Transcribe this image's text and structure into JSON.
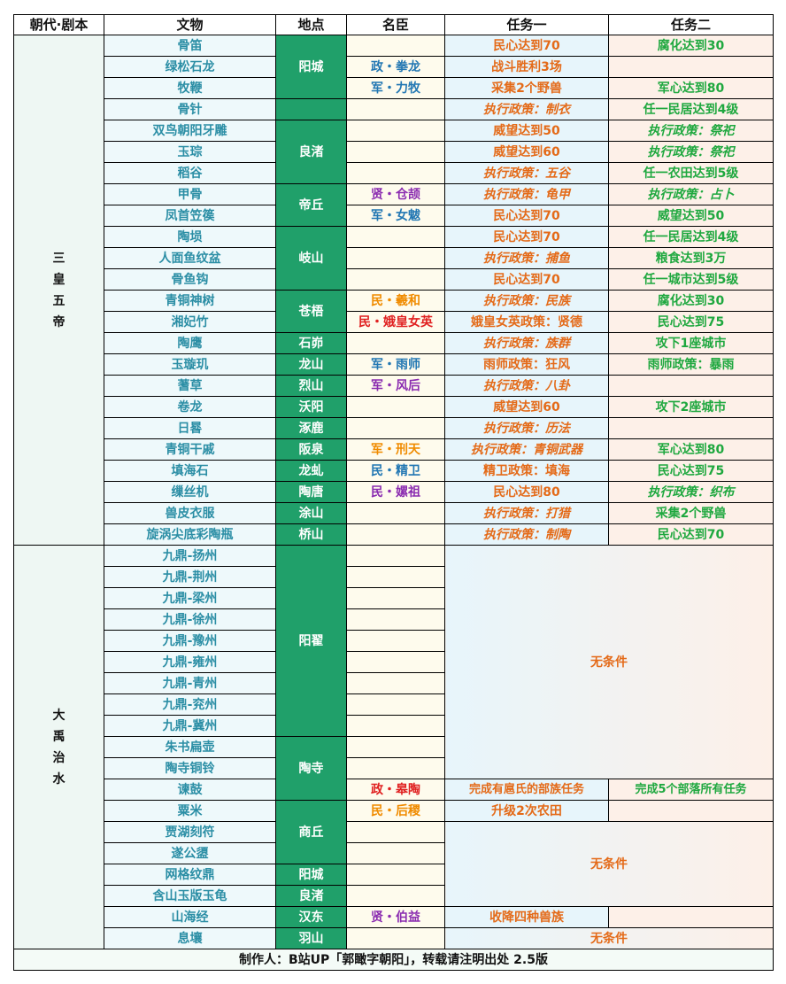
{
  "headers": [
    "朝代·剧本",
    "文物",
    "地点",
    "名臣",
    "任务一",
    "任务二"
  ],
  "era1": "三皇五帝",
  "era2": "大禹治水",
  "footer": "制作人：B站UP「郭瞰字朝阳」，转载请注明出处 2.5版",
  "no_condition": "无条件",
  "colors": {
    "location_bg": "#20a06a",
    "task1_text": "#e46a18",
    "task2_text": "#1fa83f",
    "artifact_text": "#2b8ea5"
  },
  "rows": [
    {
      "artifact": "骨笛",
      "task1": "民心达到70",
      "task2": "腐化达到30"
    },
    {
      "artifact": "绿松石龙",
      "minister": "政・拳龙",
      "task1": "战斗胜利3场",
      "task2": ""
    },
    {
      "artifact": "牧鞭",
      "minister": "军・力牧",
      "task1": "采集2个野兽",
      "task2": "军心达到80"
    },
    {
      "artifact": "骨针",
      "task1": "执行政策：制衣",
      "task2": "任一民居达到4级"
    },
    {
      "artifact": "双鸟朝阳牙雕",
      "task1": "威望达到50",
      "task2": "执行政策：祭祀"
    },
    {
      "artifact": "玉琮",
      "task1": "威望达到60",
      "task2": "执行政策：祭祀"
    },
    {
      "artifact": "稻谷",
      "task1": "执行政策：五谷",
      "task2": "任一农田达到5级"
    },
    {
      "artifact": "甲骨",
      "minister": "贤・仓颉",
      "task1": "执行政策：龟甲",
      "task2": "执行政策：占卜"
    },
    {
      "artifact": "凤首笠篌",
      "minister": "军・女魃",
      "task1": "民心达到70",
      "task2": "威望达到50"
    },
    {
      "artifact": "陶埙",
      "task1": "民心达到70",
      "task2": "任一民居达到4级"
    },
    {
      "artifact": "人面鱼纹盆",
      "task1": "执行政策：捕鱼",
      "task2": "粮食达到3万"
    },
    {
      "artifact": "骨鱼钩",
      "task1": "民心达到70",
      "task2": "任一城市达到5级"
    },
    {
      "artifact": "青铜神树",
      "minister": "民・羲和",
      "task1": "执行政策：民族",
      "task2": "腐化达到30"
    },
    {
      "artifact": "湘妃竹",
      "minister": "民・娥皇女英",
      "task1": "娥皇女英政策：贤德",
      "task2": "民心达到75"
    },
    {
      "artifact": "陶鹰",
      "location": "石峁",
      "task1": "执行政策：族群",
      "task2": "攻下1座城市"
    },
    {
      "artifact": "玉璇玑",
      "location": "龙山",
      "minister": "军・雨师",
      "task1": "雨师政策：狂风",
      "task2": "雨师政策：暴雨"
    },
    {
      "artifact": "蓍草",
      "location": "烈山",
      "minister": "军・风后",
      "task1": "执行政策：八卦",
      "task2": ""
    },
    {
      "artifact": "卷龙",
      "location": "沃阳",
      "task1": "威望达到60",
      "task2": "攻下2座城市"
    },
    {
      "artifact": "日晷",
      "location": "涿鹿",
      "task1": "执行政策：历法",
      "task2": ""
    },
    {
      "artifact": "青铜干戚",
      "location": "阪泉",
      "minister": "军・刑天",
      "task1": "执行政策：青铜武器",
      "task2": "军心达到80"
    },
    {
      "artifact": "填海石",
      "location": "龙虬",
      "minister": "民・精卫",
      "task1": "精卫政策：填海",
      "task2": "民心达到75"
    },
    {
      "artifact": "缫丝机",
      "location": "陶唐",
      "minister": "民・嫘祖",
      "task1": "民心达到80",
      "task2": "执行政策：织布"
    },
    {
      "artifact": "兽皮衣服",
      "location": "涂山",
      "task1": "执行政策：打猎",
      "task2": "采集2个野兽"
    },
    {
      "artifact": "旋涡尖底彩陶瓶",
      "location": "桥山",
      "task1": "执行政策：制陶",
      "task2": "民心达到70"
    },
    {
      "artifact": "九鼎-扬州"
    },
    {
      "artifact": "九鼎-荆州"
    },
    {
      "artifact": "九鼎-梁州"
    },
    {
      "artifact": "九鼎-徐州"
    },
    {
      "artifact": "九鼎-豫州"
    },
    {
      "artifact": "九鼎-雍州"
    },
    {
      "artifact": "九鼎-青州"
    },
    {
      "artifact": "九鼎-兖州"
    },
    {
      "artifact": "九鼎-冀州"
    },
    {
      "artifact": "朱书扁壶"
    },
    {
      "artifact": "陶寺铜铃"
    },
    {
      "artifact": "谏鼓",
      "minister": "政・皋陶",
      "task1": "完成有扈氏的部族任务",
      "task2": "完成5个部落所有任务"
    },
    {
      "artifact": "粟米",
      "minister": "民・后稷",
      "task1": "升级2次农田",
      "task2": ""
    },
    {
      "artifact": "贾湖刻符"
    },
    {
      "artifact": "遂公盨"
    },
    {
      "artifact": "网格纹鼎",
      "location": "阳城"
    },
    {
      "artifact": "含山玉版玉龟",
      "location": "良渚"
    },
    {
      "artifact": "山海经",
      "location": "汉东",
      "minister": "贤・伯益",
      "task1": "收降四种兽族",
      "task2": ""
    },
    {
      "artifact": "息壤",
      "location": "羽山"
    }
  ],
  "merged_locations": {
    "yangcheng": "阳城",
    "liangzhu": "良渚",
    "diqiu": "帝丘",
    "qishan": "岐山",
    "cangwu": "苍梧",
    "yangzhai": "阳翟",
    "taosi": "陶寺",
    "shangqiu": "商丘"
  }
}
